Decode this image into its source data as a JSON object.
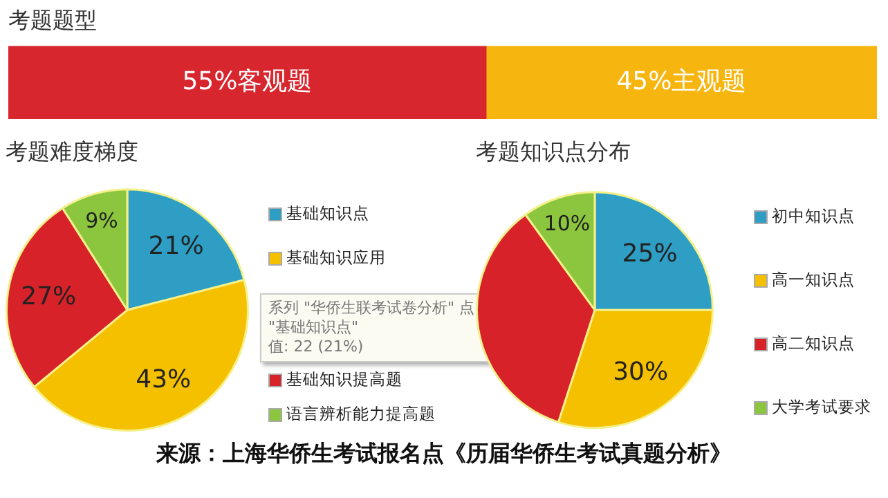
{
  "chart_data": [
    {
      "type": "bar",
      "title": "考题题型",
      "orientation": "horizontal",
      "stacked": true,
      "categories": [
        null
      ],
      "xlim": [
        0,
        100
      ],
      "tick_labels": false,
      "legend": false,
      "series": [
        {
          "color": "#d8262e",
          "values": [
            55
          ],
          "value_labels": [
            "55%客观题"
          ]
        },
        {
          "color": "#f7b50f",
          "values": [
            45
          ],
          "value_labels": [
            "45%主观题"
          ]
        }
      ]
    },
    {
      "type": "pie",
      "title": "考题难度梯度",
      "categories": [
        "基础知识点",
        "基础知识应用",
        "基础知识提高题",
        "语言辨析能力提高题"
      ],
      "values": [
        21,
        43,
        27,
        9
      ],
      "value_labels": [
        "21%",
        "43%",
        "27%",
        "9%"
      ],
      "colors": [
        "#2e9ec4",
        "#f5c000",
        "#d8222a",
        "#8cc63f"
      ],
      "legend": "right",
      "annotations": [
        "系列 \"华侨生联考试卷分析\" 点 \"基础知识点\"",
        "值: 22 (21%)"
      ]
    },
    {
      "type": "pie",
      "title": "考题知识点分布",
      "categories": [
        "初中知识点",
        "高一知识点",
        "高二知识点",
        "大学考试要求"
      ],
      "values": [
        25,
        30,
        35,
        10
      ],
      "value_labels": [
        "25%",
        "30%",
        null,
        "10%"
      ],
      "colors": [
        "#2e9ec4",
        "#f5c000",
        "#d8222a",
        "#8cc63f"
      ],
      "legend": "right",
      "annotations": [
        "来源：上海华侨生考试报名点《历届华侨生考试真题分析》"
      ]
    }
  ]
}
